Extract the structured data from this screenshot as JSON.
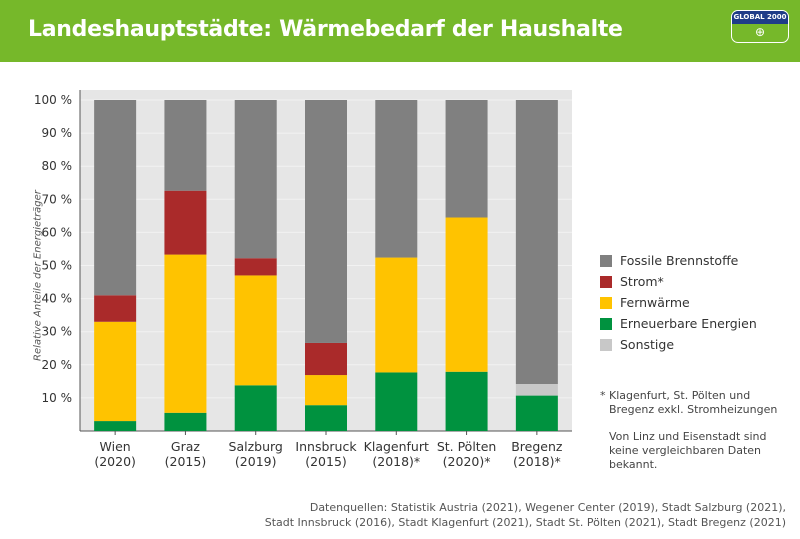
{
  "header": {
    "title": "Landeshauptstädte: Wärmebedarf der Haushalte",
    "logo_text": "GLOBAL 2000"
  },
  "colors": {
    "header": "#76b82a",
    "fossil": "#808080",
    "strom": "#aa2a2a",
    "fernwaerme": "#ffc300",
    "erneuerbar": "#00923f",
    "sonstige": "#c8c8c8",
    "plot_bg": "#e6e6e6"
  },
  "chart_data": {
    "type": "bar",
    "stacked": true,
    "title": "",
    "ylabel": "Relative Anteile der Energieträger",
    "ylim": [
      0,
      100
    ],
    "yticks": [
      "10 %",
      "20 %",
      "30 %",
      "40 %",
      "50 %",
      "60 %",
      "70 %",
      "80 %",
      "90 %",
      "100 %"
    ],
    "categories": [
      [
        "Wien",
        "(2020)"
      ],
      [
        "Graz",
        "(2015)"
      ],
      [
        "Salzburg",
        "(2019)"
      ],
      [
        "Innsbruck",
        "(2015)"
      ],
      [
        "Klagenfurt",
        "(2018)*"
      ],
      [
        "St. Pölten",
        "(2020)*"
      ],
      [
        "Bregenz",
        "(2018)*"
      ]
    ],
    "series": [
      {
        "name": "Erneuerbare Energien",
        "color": "#00923f",
        "values": [
          3,
          5.5,
          13.8,
          7.8,
          17.7,
          17.9,
          10.7
        ]
      },
      {
        "name": "Sonstige",
        "color": "#c8c8c8",
        "values": [
          0,
          0,
          0,
          0,
          0,
          0,
          3.5
        ]
      },
      {
        "name": "Fernwärme",
        "color": "#ffc300",
        "values": [
          30,
          47.8,
          33.2,
          9.1,
          34.7,
          46.6,
          0
        ]
      },
      {
        "name": "Strom*",
        "color": "#aa2a2a",
        "values": [
          8,
          19.3,
          5.2,
          9.7,
          0,
          0,
          0
        ]
      },
      {
        "name": "Fossile Brennstoffe",
        "color": "#808080",
        "values": [
          59,
          27.4,
          47.8,
          73.4,
          47.6,
          35.5,
          85.8
        ]
      }
    ],
    "legend": [
      "Fossile Brennstoffe",
      "Strom*",
      "Fernwärme",
      "Erneuerbare Energien",
      "Sonstige"
    ],
    "legend_colors": [
      "#808080",
      "#aa2a2a",
      "#ffc300",
      "#00923f",
      "#c8c8c8"
    ],
    "legend_position": "right",
    "grid": true
  },
  "notes": {
    "footnote_1": "* Klagenfurt, St. Pölten und",
    "footnote_2": "Bregenz exkl. Stromheizungen",
    "note_1": "Von Linz und Eisenstadt sind",
    "note_2": "keine vergleichbaren Daten",
    "note_3": "bekannt."
  },
  "source": {
    "line1": "Datenquellen: Statistik Austria (2021), Wegener Center (2019), Stadt Salzburg (2021),",
    "line2": "Stadt Innsbruck (2016), Stadt Klagenfurt (2021), Stadt St. Pölten (2021), Stadt Bregenz (2021)"
  }
}
